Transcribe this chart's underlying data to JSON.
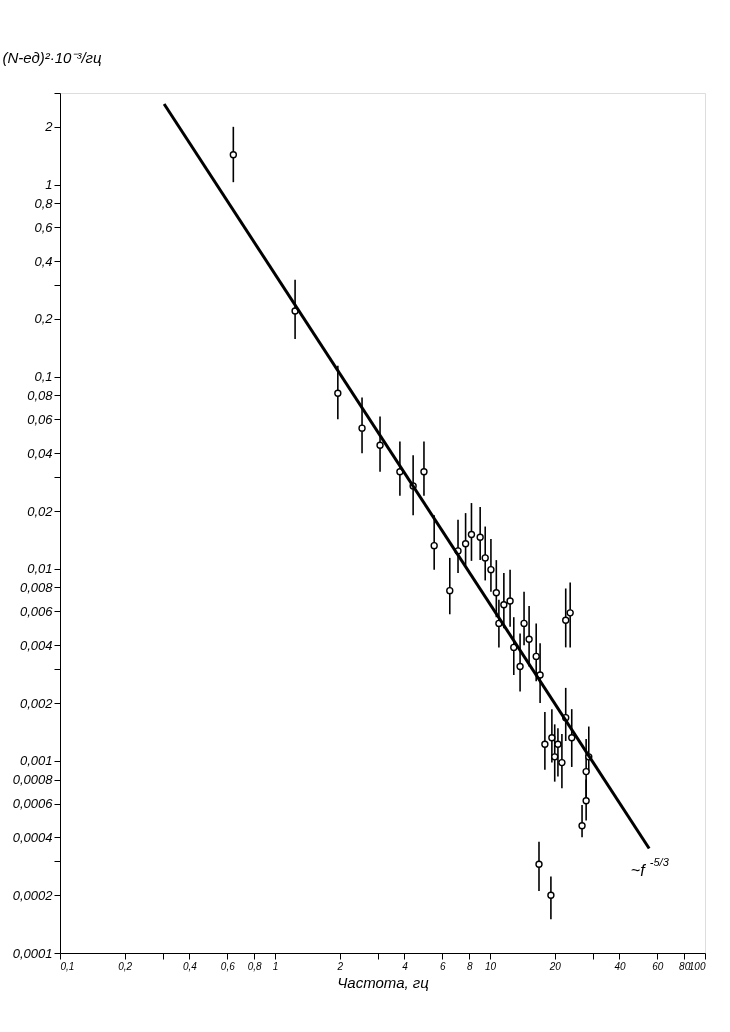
{
  "chart_data": {
    "type": "scatter",
    "xlabel": "Частота, гц",
    "ylabel": "(N-ед)²·10⁻³/гц",
    "annotations": [
      "~f$^{-5/3}$"
    ],
    "xlim": [
      0.1,
      100
    ],
    "ylim": [
      0.0001,
      3
    ],
    "xticks": [
      {
        "value": 0.1,
        "label": "0,1"
      },
      {
        "value": 0.2,
        "label": "0,2"
      },
      {
        "value": 0.3,
        "label": null
      },
      {
        "value": 0.4,
        "label": "0,4"
      },
      {
        "value": 0.6,
        "label": "0,6"
      },
      {
        "value": 0.8,
        "label": "0,8"
      },
      1,
      2,
      {
        "value": 3,
        "label": null
      },
      4,
      6,
      8,
      10,
      20,
      {
        "value": 30,
        "label": null
      },
      40,
      60,
      80,
      100
    ],
    "yticks": [
      {
        "value": 0.0001,
        "label": "0,0001"
      },
      {
        "value": 0.0002,
        "label": "0,0002"
      },
      {
        "value": 0.0003,
        "label": null
      },
      {
        "value": 0.0004,
        "label": "0,0004"
      },
      {
        "value": 0.0006,
        "label": "0,0006"
      },
      {
        "value": 0.0008,
        "label": "0,0008"
      },
      {
        "value": 0.001,
        "label": "0,001"
      },
      {
        "value": 0.002,
        "label": "0,002"
      },
      {
        "value": 0.003,
        "label": null
      },
      {
        "value": 0.004,
        "label": "0,004"
      },
      {
        "value": 0.006,
        "label": "0,006"
      },
      {
        "value": 0.008,
        "label": "0,008"
      },
      {
        "value": 0.01,
        "label": "0,01"
      },
      {
        "value": 0.02,
        "label": "0,02"
      },
      {
        "value": 0.03,
        "label": null
      },
      {
        "value": 0.04,
        "label": "0,04"
      },
      {
        "value": 0.06,
        "label": "0,06"
      },
      {
        "value": 0.08,
        "label": "0,08"
      },
      {
        "value": 0.1,
        "label": "0,1"
      },
      {
        "value": 0.2,
        "label": "0,2"
      },
      {
        "value": 0.3,
        "label": null
      },
      {
        "value": 0.4,
        "label": "0,4"
      },
      {
        "value": 0.6,
        "label": "0,6"
      },
      {
        "value": 0.8,
        "label": "0,8"
      },
      1,
      2,
      {
        "value": 3,
        "label": null
      }
    ],
    "log": "xy",
    "grid": false,
    "series": [
      {
        "marker": "circle",
        "color": "#000000",
        "x": [
          0.64,
          1.24,
          1.96,
          2.54,
          3.08,
          3.81,
          4.39,
          4.93,
          5.5,
          6.5,
          7.1,
          7.7,
          8.2,
          9.0,
          9.5,
          10.1,
          10.7,
          11.0,
          11.6,
          12.4,
          12.9,
          13.8,
          14.4,
          15.2,
          16.4,
          17.1,
          22.5,
          23.6,
          18.0,
          19.4,
          20.0,
          20.7,
          21.6,
          22.5,
          24.0,
          28.8,
          28.0,
          28.0,
          26.8,
          16.9,
          19.2
        ],
        "values": [
          1.43,
          0.22,
          0.082,
          0.054,
          0.044,
          0.032,
          0.027,
          0.032,
          0.0132,
          0.0077,
          0.0124,
          0.0135,
          0.0151,
          0.0146,
          0.0114,
          0.0099,
          0.0075,
          0.0052,
          0.0065,
          0.0068,
          0.0039,
          0.0031,
          0.0052,
          0.0043,
          0.0035,
          0.0028,
          0.0054,
          0.0059,
          0.00122,
          0.00132,
          0.00105,
          0.00122,
          0.00098,
          0.00168,
          0.00132,
          0.00105,
          0.00088,
          0.00062,
          0.00046,
          0.00029,
          0.0002
        ],
        "errors": [
          [
            1.03,
            2.0
          ],
          [
            0.157,
            0.32
          ],
          [
            0.06,
            0.114
          ],
          [
            0.04,
            0.078
          ],
          [
            0.032,
            0.062
          ],
          [
            0.024,
            0.046
          ],
          [
            0.019,
            0.039
          ],
          [
            0.024,
            0.046
          ],
          [
            0.0099,
            0.019
          ],
          [
            0.0058,
            0.0114
          ],
          [
            0.0095,
            0.018
          ],
          [
            0.0104,
            0.0195
          ],
          [
            0.011,
            0.022
          ],
          [
            0.0111,
            0.021
          ],
          [
            0.0087,
            0.0166
          ],
          [
            0.0076,
            0.0143
          ],
          [
            0.0056,
            0.0111
          ],
          [
            0.0039,
            0.0069
          ],
          [
            0.0049,
            0.0095
          ],
          [
            0.005,
            0.0099
          ],
          [
            0.0028,
            0.0056
          ],
          [
            0.0023,
            0.0046
          ],
          [
            0.004,
            0.0076
          ],
          [
            0.0031,
            0.0064
          ],
          [
            0.0026,
            0.0052
          ],
          [
            0.002,
            0.0041
          ],
          [
            0.0039,
            0.0079
          ],
          [
            0.0039,
            0.0085
          ],
          [
            0.0009,
            0.0018
          ],
          [
            0.00098,
            0.00186
          ],
          [
            0.00078,
            0.00155
          ],
          [
            0.00083,
            0.00148
          ],
          [
            0.00072,
            0.00138
          ],
          [
            0.00127,
            0.0024
          ],
          [
            0.00093,
            0.00186
          ],
          [
            0.00087,
            0.00151
          ],
          [
            0.00064,
            0.0013
          ],
          [
            0.00049,
            0.0008
          ],
          [
            0.0004,
            0.00059
          ],
          [
            0.00021,
            0.00038
          ],
          [
            0.00015,
            0.00025
          ]
        ]
      },
      {
        "type": "line",
        "color": "#000000",
        "x": [
          0.305,
          55
        ],
        "values": [
          2.63,
          0.00035
        ]
      }
    ]
  }
}
